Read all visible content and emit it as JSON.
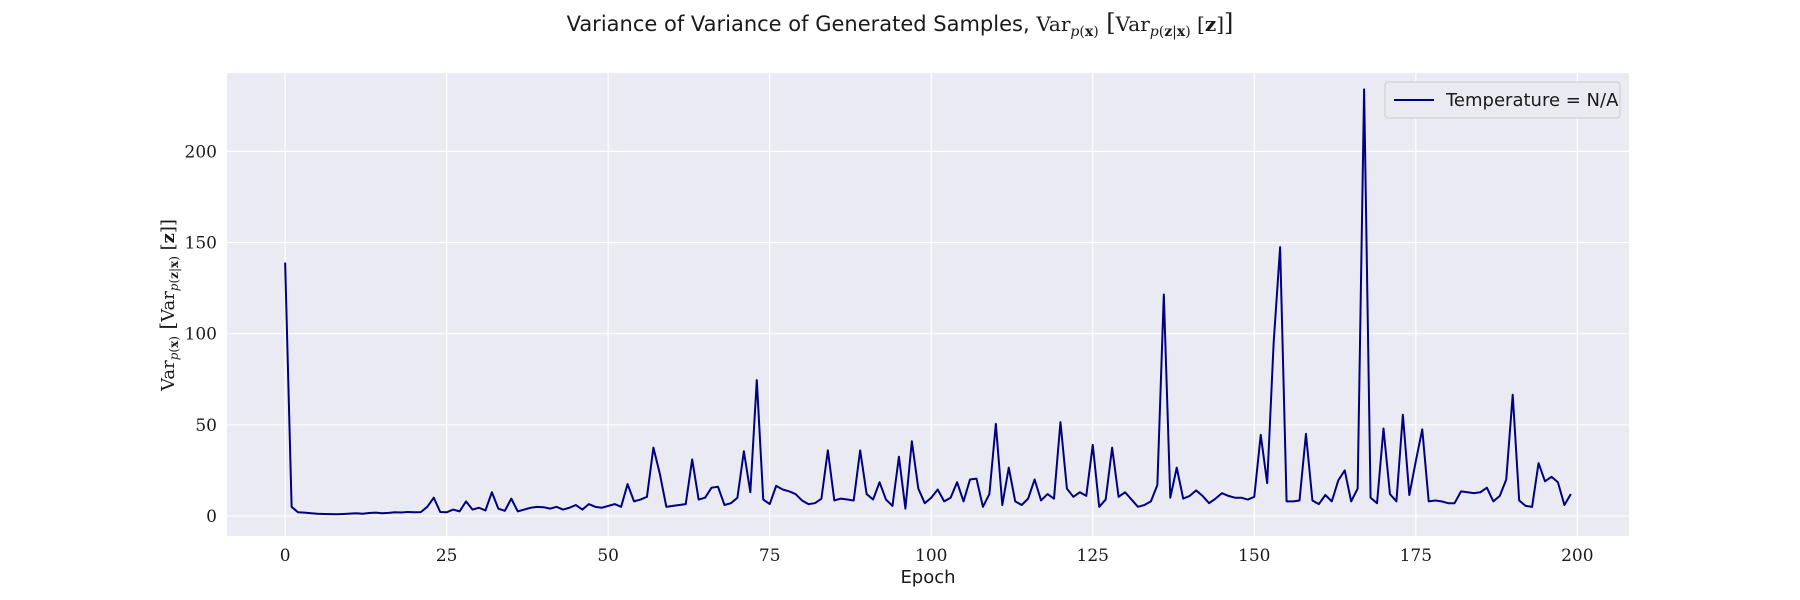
{
  "chart_data": {
    "type": "line",
    "title_text": "Variance of Variance of Generated Samples, ",
    "title_math": "Var_p(x)[Var_p(z|x)[z]]",
    "xlabel": "Epoch",
    "ylabel": "Var_p(x)[Var_p(z|x)[z]]",
    "xlim": [
      -9,
      208
    ],
    "ylim": [
      -11,
      243
    ],
    "xticks": [
      0,
      25,
      50,
      75,
      100,
      125,
      150,
      175,
      200
    ],
    "yticks": [
      0,
      50,
      100,
      150,
      200
    ],
    "grid": true,
    "legend_position": "top-right",
    "series": [
      {
        "name": "Temperature = N/A",
        "color": "#000080",
        "x": [
          0,
          1,
          2,
          3,
          4,
          5,
          6,
          7,
          8,
          9,
          10,
          11,
          12,
          13,
          14,
          15,
          16,
          17,
          18,
          19,
          20,
          21,
          22,
          23,
          24,
          25,
          26,
          27,
          28,
          29,
          30,
          31,
          32,
          33,
          34,
          35,
          36,
          37,
          38,
          39,
          40,
          41,
          42,
          43,
          44,
          45,
          46,
          47,
          48,
          49,
          50,
          51,
          52,
          53,
          54,
          55,
          56,
          57,
          58,
          59,
          60,
          61,
          62,
          63,
          64,
          65,
          66,
          67,
          68,
          69,
          70,
          71,
          72,
          73,
          74,
          75,
          76,
          77,
          78,
          79,
          80,
          81,
          82,
          83,
          84,
          85,
          86,
          87,
          88,
          89,
          90,
          91,
          92,
          93,
          94,
          95,
          96,
          97,
          98,
          99,
          100,
          101,
          102,
          103,
          104,
          105,
          106,
          107,
          108,
          109,
          110,
          111,
          112,
          113,
          114,
          115,
          116,
          117,
          118,
          119,
          120,
          121,
          122,
          123,
          124,
          125,
          126,
          127,
          128,
          129,
          130,
          131,
          132,
          133,
          134,
          135,
          136,
          137,
          138,
          139,
          140,
          141,
          142,
          143,
          144,
          145,
          146,
          147,
          148,
          149,
          150,
          151,
          152,
          153,
          154,
          155,
          156,
          157,
          158,
          159,
          160,
          161,
          162,
          163,
          164,
          165,
          166,
          167,
          168,
          169,
          170,
          171,
          172,
          173,
          174,
          175,
          176,
          177,
          178,
          179,
          180,
          181,
          182,
          183,
          184,
          185,
          186,
          187,
          188,
          189,
          190,
          191,
          192,
          193,
          194,
          195,
          196,
          197,
          198,
          199
        ],
        "y": [
          139,
          5,
          2,
          1.8,
          1.5,
          1.2,
          1.1,
          1,
          0.9,
          1.1,
          1.3,
          1.5,
          1.2,
          1.6,
          1.8,
          1.5,
          1.7,
          2,
          1.9,
          2.2,
          2,
          2.1,
          5,
          10,
          2.2,
          2,
          3.5,
          2.5,
          8,
          3.5,
          4.5,
          3,
          13,
          4,
          2.8,
          9.5,
          2.5,
          3.5,
          4.5,
          5,
          4.8,
          4,
          5,
          3.5,
          4.5,
          6,
          3.5,
          6.5,
          5,
          4.5,
          5.5,
          6.5,
          5,
          17.5,
          8,
          9,
          10.5,
          37.5,
          23,
          5,
          5.5,
          6,
          6.5,
          31,
          9,
          10,
          15.5,
          16,
          6,
          7,
          10,
          35.5,
          13,
          74.5,
          9,
          6.5,
          16.5,
          14.5,
          13.5,
          12,
          8.5,
          6.5,
          7,
          9.5,
          36,
          8.5,
          9.5,
          9,
          8.5,
          36,
          12,
          9,
          18.5,
          9,
          5.5,
          32.5,
          4,
          41,
          15,
          7,
          10,
          14.5,
          8,
          10,
          18.5,
          8,
          20,
          20.5,
          5,
          12,
          50.5,
          6,
          26.5,
          8,
          6,
          9.5,
          20,
          8.5,
          12,
          9.5,
          51.5,
          15,
          10.5,
          13,
          11,
          39,
          5,
          9,
          37.5,
          10.5,
          13,
          9,
          5,
          6,
          8,
          17,
          121.5,
          10,
          26.5,
          9.5,
          11,
          14,
          11,
          7,
          9.5,
          12.5,
          11,
          10,
          10,
          9,
          10.5,
          44.5,
          18,
          95,
          147.5,
          8,
          8,
          8.5,
          45,
          8.5,
          6.5,
          11.5,
          8,
          19.5,
          25,
          8,
          15,
          234,
          10,
          7,
          48,
          12,
          8,
          55.5,
          11.5,
          30,
          47.5,
          8,
          8.5,
          8,
          7,
          7,
          13.5,
          13,
          12.5,
          13,
          15.5,
          8,
          11,
          20,
          66.5,
          8.5,
          5.5,
          5,
          29,
          19,
          21.5,
          18.5,
          6,
          12
        ]
      }
    ]
  }
}
